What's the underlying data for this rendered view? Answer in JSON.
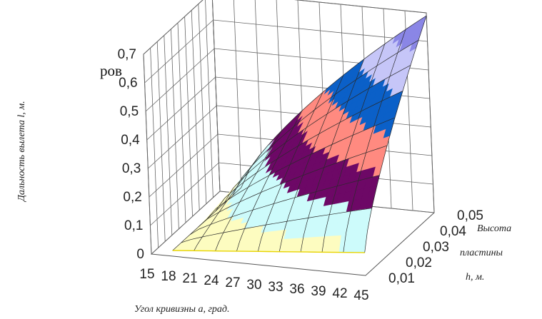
{
  "fragment_text": "ров",
  "chart_data": {
    "type": "surface",
    "title": "",
    "zlabel": "Дальность вылета l, м.",
    "xlabel": "Угол кривизны a, град.",
    "ylabel_lines": [
      "Высота",
      "пластины",
      "h, м."
    ],
    "x_ticks": [
      "15",
      "18",
      "21",
      "24",
      "27",
      "30",
      "33",
      "36",
      "39",
      "42",
      "45"
    ],
    "y_ticks": [
      "0,01",
      "0,02",
      "0,03",
      "0,04",
      "0,05"
    ],
    "z_ticks": [
      "0",
      "0,1",
      "0,2",
      "0,3",
      "0,4",
      "0,5",
      "0,6",
      "0,7"
    ],
    "zlim": [
      0,
      0.7
    ],
    "x_range": [
      15,
      45
    ],
    "y_range": [
      0.01,
      0.05
    ],
    "band_colors": [
      "#8b1a5a",
      "#fdfcc0",
      "#cdfbfb",
      "#6d0866",
      "#ff8a80",
      "#0b60c8",
      "#c6c6f8",
      "#8a86e6"
    ],
    "surface_samples": [
      {
        "x": 18,
        "y": 0.01,
        "z": 0.02
      },
      {
        "x": 45,
        "y": 0.01,
        "z": 0.08
      },
      {
        "x": 30,
        "y": 0.03,
        "z": 0.25
      },
      {
        "x": 45,
        "y": 0.03,
        "z": 0.38
      },
      {
        "x": 30,
        "y": 0.05,
        "z": 0.4
      },
      {
        "x": 45,
        "y": 0.05,
        "z": 0.69
      }
    ],
    "grid": true,
    "legend": "none"
  }
}
